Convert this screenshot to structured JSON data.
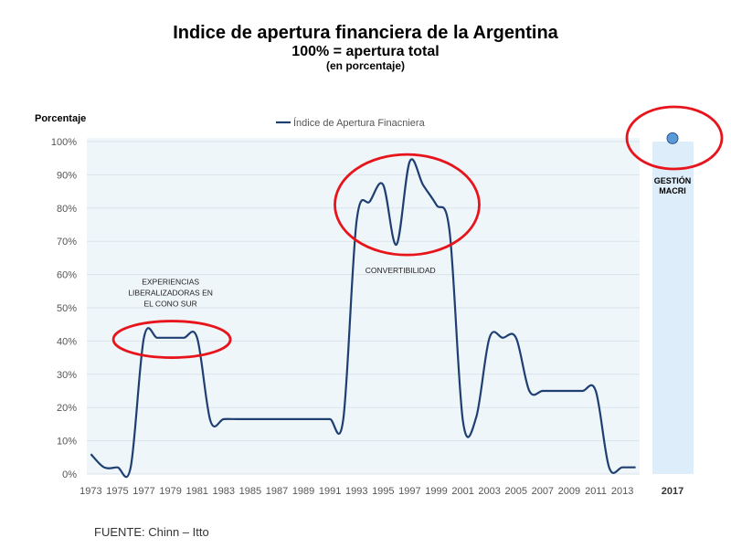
{
  "header": {
    "title": "Indice de apertura financiera de la Argentina",
    "subtitle": "100% = apertura total",
    "unit_note": "(en porcentaje)"
  },
  "source": "FUENTE: Chinn – Itto",
  "chart_data": {
    "type": "line",
    "ylabel": "Porcentaje",
    "ylim": [
      0,
      100
    ],
    "y_ticks": [
      "0%",
      "10%",
      "20%",
      "30%",
      "40%",
      "50%",
      "60%",
      "70%",
      "80%",
      "90%",
      "100%"
    ],
    "x_ticks": [
      "1973",
      "1975",
      "1977",
      "1979",
      "1981",
      "1983",
      "1985",
      "1987",
      "1989",
      "1991",
      "1993",
      "1995",
      "1997",
      "1999",
      "2001",
      "2003",
      "2005",
      "2007",
      "2009",
      "2011",
      "2013"
    ],
    "series": [
      {
        "name": "Índice de Apertura Finacniera",
        "color": "#1f3f73",
        "x": [
          1973,
          1974,
          1975,
          1976,
          1977,
          1978,
          1979,
          1980,
          1981,
          1982,
          1983,
          1984,
          1985,
          1986,
          1987,
          1988,
          1989,
          1990,
          1991,
          1992,
          1993,
          1994,
          1995,
          1996,
          1997,
          1998,
          1999,
          2000,
          2001,
          2002,
          2003,
          2004,
          2005,
          2006,
          2007,
          2008,
          2009,
          2010,
          2011,
          2012,
          2013,
          2014
        ],
        "values": [
          6,
          2,
          2,
          2,
          41,
          41,
          41,
          41,
          41,
          16,
          16.5,
          16.5,
          16.5,
          16.5,
          16.5,
          16.5,
          16.5,
          16.5,
          16.5,
          16.5,
          76,
          82,
          87,
          69,
          94,
          87,
          81,
          73,
          16,
          17,
          41,
          41,
          41,
          25,
          25,
          25,
          25,
          25,
          25,
          2,
          2,
          2
        ]
      }
    ],
    "extra_point": {
      "category": "2017",
      "value": 101,
      "color": "#5b9bd5",
      "annotation": "GESTIÓN\nMACRI"
    },
    "annotations": [
      {
        "text": "EXPERIENCIAS\nLIBERALIZADORAS EN\nEL CONO SUR",
        "x": 1979,
        "y": 57
      },
      {
        "text": "CONVERTIBILIDAD",
        "x": 1996.3,
        "y": 60.5
      }
    ],
    "highlight_circles": [
      {
        "label": "cono-sur",
        "cx": 1979.1,
        "cy": 40.5
      },
      {
        "label": "convertibilidad",
        "cx": 1996.8,
        "cy": 81
      },
      {
        "label": "macri",
        "cx": "2017",
        "cy": 101
      }
    ],
    "legend_position": "top-center",
    "grid": true,
    "circle_color": "#e8141b",
    "plot_bg_color": "#eef6fa",
    "extra_band_color": "#ddeefa"
  }
}
